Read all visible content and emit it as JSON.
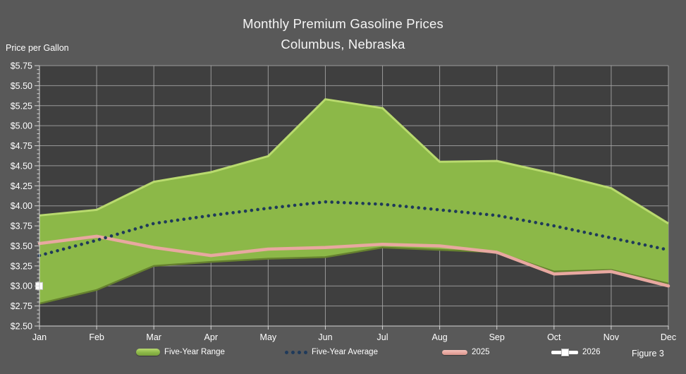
{
  "title": {
    "line1": "Monthly Premium Gasoline Prices",
    "line2": "Columbus, Nebraska"
  },
  "y_axis_title": "Price per Gallon",
  "figure_label": "Figure 3",
  "legend": [
    {
      "label": "Five-Year Range",
      "type": "range"
    },
    {
      "label": "Five-Year Average",
      "type": "dotted"
    },
    {
      "label": "2025",
      "type": "line"
    },
    {
      "label": "2026",
      "type": "point"
    }
  ],
  "colors": {
    "background": "#595959",
    "plot_background": "#3F3F3F",
    "gridline": "#A8A8A8",
    "axis": "#D4D4D4",
    "text": "#FFFFFF",
    "range_fill": "#8CB848",
    "range_highlight": "#B9DA6E",
    "range_shadow": "#66812F",
    "average_dot": "#1F3A5A",
    "line_2025": "#E8A8A0",
    "marker_2026": "#FFFFFF"
  },
  "chart_data": {
    "type": "area",
    "title": "Monthly Premium Gasoline Prices - Columbus, Nebraska",
    "xlabel": "",
    "ylabel": "Price per Gallon",
    "ylim": [
      2.5,
      5.75
    ],
    "y_tick_step": 0.25,
    "y_tick_labels": [
      "$2.50",
      "$2.75",
      "$3.00",
      "$3.25",
      "$3.50",
      "$3.75",
      "$4.00",
      "$4.25",
      "$4.50",
      "$4.75",
      "$5.00",
      "$5.25",
      "$5.50",
      "$5.75"
    ],
    "categories": [
      "Jan",
      "Feb",
      "Mar",
      "Apr",
      "May",
      "Jun",
      "Jul",
      "Aug",
      "Sep",
      "Oct",
      "Nov",
      "Dec"
    ],
    "grid": true,
    "legend_position": "bottom",
    "series": [
      {
        "name": "Five-Year Range",
        "type": "range_area",
        "max": [
          3.88,
          3.95,
          4.3,
          4.42,
          4.62,
          5.33,
          5.22,
          4.55,
          4.56,
          4.4,
          4.22,
          3.78
        ],
        "min": [
          2.78,
          2.95,
          3.25,
          3.3,
          3.34,
          3.36,
          3.48,
          3.45,
          3.42,
          3.18,
          3.2,
          3.03
        ]
      },
      {
        "name": "Five-Year Average",
        "type": "dotted_line",
        "values": [
          3.38,
          3.57,
          3.78,
          3.88,
          3.97,
          4.05,
          4.02,
          3.95,
          3.88,
          3.75,
          3.6,
          3.45
        ]
      },
      {
        "name": "2025",
        "type": "line",
        "values": [
          3.53,
          3.62,
          3.48,
          3.38,
          3.46,
          3.48,
          3.52,
          3.5,
          3.42,
          3.15,
          3.18,
          3.0
        ]
      },
      {
        "name": "2026",
        "type": "point",
        "values": [
          3.0,
          null,
          null,
          null,
          null,
          null,
          null,
          null,
          null,
          null,
          null,
          null
        ]
      }
    ]
  }
}
